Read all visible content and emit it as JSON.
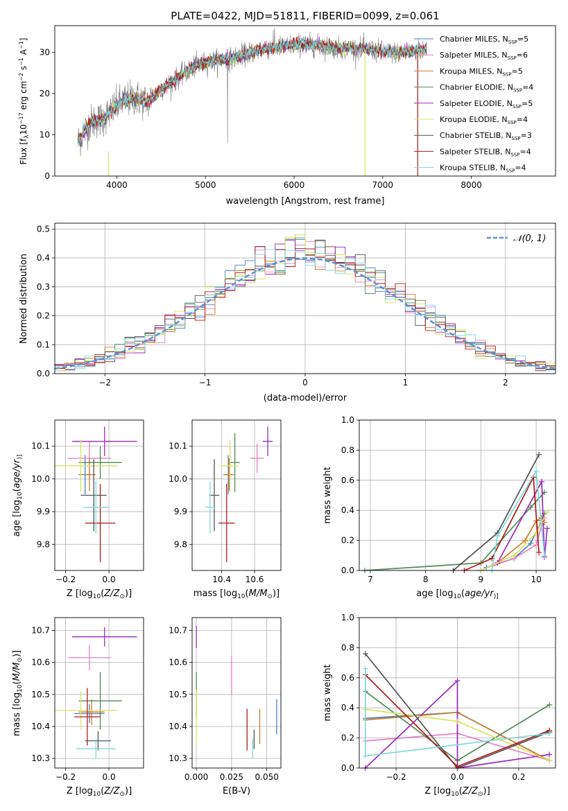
{
  "colors": {
    "Chabrier MILES": "#4a7fc1",
    "Salpeter MILES": "#e680c0",
    "Kroupa MILES": "#d07a2a",
    "Chabrier ELODIE": "#4f8a55",
    "Salpeter ELODIE": "#9a28b8",
    "Kroupa ELODIE": "#d8e45a",
    "Chabrier STELIB": "#505050",
    "Salpeter STELIB": "#b01818",
    "Kroupa STELIB": "#7fd8dc",
    "normal": "#5b8fd6",
    "grey_spec": "#777777"
  },
  "chart_data": [
    {
      "type": "line",
      "title": "PLATE=0422, MJD=51811, FIBERID=0099, z=0.061",
      "xlabel": "wavelength [Angstrom, rest frame]",
      "ylabel_parts": [
        "Flux [f",
        "λ",
        "10",
        "−17",
        " erg cm",
        "−2",
        " s",
        "−1",
        " A",
        "−1",
        "]"
      ],
      "xlim": [
        3300,
        8950
      ],
      "ylim": [
        0,
        36.5
      ],
      "xticks": [
        4000,
        5000,
        6000,
        7000,
        8000
      ],
      "xtick_labels": [
        "4000",
        "5000",
        "6000",
        "7000",
        "8000"
      ],
      "yticks": [
        0,
        10,
        20,
        30
      ],
      "ytick_labels": [
        "0",
        "10",
        "20",
        "30"
      ],
      "grid": false,
      "legend_position": "right",
      "legend": [
        {
          "model": "Chabrier MILES",
          "label": "Chabrier MILES, N",
          "sub": "SSP",
          "suffix": "=5"
        },
        {
          "model": "Salpeter MILES",
          "label": "Salpeter MILES, N",
          "sub": "SSP",
          "suffix": "=6"
        },
        {
          "model": "Kroupa MILES",
          "label": "Kroupa MILES, N",
          "sub": "SSP",
          "suffix": "=5"
        },
        {
          "model": "Chabrier ELODIE",
          "label": "Chabrier ELODIE, N",
          "sub": "SSP",
          "suffix": "=4"
        },
        {
          "model": "Salpeter ELODIE",
          "label": "Salpeter ELODIE, N",
          "sub": "SSP",
          "suffix": "=5"
        },
        {
          "model": "Kroupa ELODIE",
          "label": "Kroupa ELODIE, N",
          "sub": "SSP",
          "suffix": "=4"
        },
        {
          "model": "Chabrier STELIB",
          "label": "Chabrier STELIB, N",
          "sub": "SSP",
          "suffix": "=3"
        },
        {
          "model": "Salpeter STELIB",
          "label": "Salpeter STELIB, N",
          "sub": "SSP",
          "suffix": "=4"
        },
        {
          "model": "Kroupa STELIB",
          "label": "Kroupa STELIB, N",
          "sub": "SSP",
          "suffix": "=4"
        }
      ],
      "spectrum_shape": {
        "x": [
          3550,
          3700,
          3850,
          3950,
          4050,
          4200,
          4350,
          4500,
          4700,
          4900,
          5100,
          5300,
          5500,
          5700,
          5900,
          6100,
          6300,
          6500,
          6700,
          6900,
          7100,
          7300,
          7500
        ],
        "y": [
          8,
          13,
          14,
          16,
          18,
          19,
          18,
          21,
          24,
          27,
          28,
          28.5,
          30,
          31,
          31.5,
          32,
          31.5,
          31,
          31,
          30.5,
          30,
          30,
          31
        ]
      }
    },
    {
      "type": "step",
      "xlabel": "(data-model)/error",
      "ylabel": "Normed distribution",
      "xlim": [
        -2.5,
        2.5
      ],
      "ylim": [
        0,
        0.52
      ],
      "xticks": [
        -2,
        -1,
        0,
        1,
        2
      ],
      "xtick_labels": [
        "−2",
        "−1",
        "0",
        "1",
        "2"
      ],
      "yticks": [
        0,
        0.1,
        0.2,
        0.3,
        0.4,
        0.5
      ],
      "ytick_labels": [
        "0.0",
        "0.1",
        "0.2",
        "0.3",
        "0.4",
        "0.5"
      ],
      "grid": true,
      "legend_position": "top-right",
      "legend_label": "𝒩(0, 1)",
      "bin_width": 0.1
    },
    {
      "type": "errorbar",
      "xlabel": "Z [log10(Z/Z⊙)]",
      "xlabel_parts": [
        "Z [log",
        "10",
        "(",
        "Z/Z",
        "⊙",
        ")]"
      ],
      "ylabel_parts": [
        "age  [log",
        "10",
        "(",
        "age/yr",
        ")]"
      ],
      "xlim": [
        -0.25,
        0.16
      ],
      "ylim": [
        9.72,
        10.18
      ],
      "xticks": [
        -0.2,
        0.0
      ],
      "xtick_labels": [
        "−0.2",
        "0.0"
      ],
      "yticks": [
        9.8,
        9.9,
        10.0,
        10.1
      ],
      "ytick_labels": [
        "9.8",
        "9.9",
        "10.0",
        "10.1"
      ],
      "grid": true,
      "points": [
        {
          "model": "Chabrier MILES",
          "x": -0.11,
          "xerr": 0.03,
          "y": 10.013,
          "yerr": 0.06
        },
        {
          "model": "Salpeter MILES",
          "x": -0.09,
          "xerr": 0.1,
          "y": 10.063,
          "yerr": 0.05
        },
        {
          "model": "Kroupa MILES",
          "x": -0.09,
          "xerr": 0.03,
          "y": 10.013,
          "yerr": 0.05
        },
        {
          "model": "Chabrier ELODIE",
          "x": -0.04,
          "xerr": 0.1,
          "y": 10.05,
          "yerr": 0.05
        },
        {
          "model": "Salpeter ELODIE",
          "x": -0.02,
          "xerr": 0.15,
          "y": 10.115,
          "yerr": 0.045
        },
        {
          "model": "Kroupa ELODIE",
          "x": -0.13,
          "xerr": 0.17,
          "y": 10.04,
          "yerr": 0.08
        },
        {
          "model": "Chabrier STELIB",
          "x": -0.07,
          "xerr": 0.06,
          "y": 9.95,
          "yerr": 0.11
        },
        {
          "model": "Salpeter STELIB",
          "x": -0.04,
          "xerr": 0.07,
          "y": 9.865,
          "yerr": 0.12
        },
        {
          "model": "Kroupa STELIB",
          "x": -0.06,
          "xerr": 0.06,
          "y": 9.913,
          "yerr": 0.08
        }
      ]
    },
    {
      "type": "errorbar",
      "xlabel": "mass [log10(M/M⊙)]",
      "xlabel_parts": [
        "mass [log",
        "10",
        "(",
        "M/M",
        "⊙",
        ")]"
      ],
      "xlim": [
        10.22,
        10.76
      ],
      "ylim": [
        9.72,
        10.18
      ],
      "xticks": [
        10.4,
        10.6
      ],
      "xtick_labels": [
        "10.4",
        "10.6"
      ],
      "yticks": [
        9.8,
        9.9,
        10.0,
        10.1
      ],
      "ytick_labels": [
        "9.8",
        "9.9",
        "10.0",
        "10.1"
      ],
      "grid": true,
      "points": [
        {
          "model": "Chabrier MILES",
          "x": 10.44,
          "xerr": 0.03,
          "y": 10.013,
          "yerr": 0.06
        },
        {
          "model": "Salpeter MILES",
          "x": 10.615,
          "xerr": 0.04,
          "y": 10.063,
          "yerr": 0.045
        },
        {
          "model": "Kroupa MILES",
          "x": 10.445,
          "xerr": 0.03,
          "y": 10.013,
          "yerr": 0.05
        },
        {
          "model": "Chabrier ELODIE",
          "x": 10.48,
          "xerr": 0.03,
          "y": 10.05,
          "yerr": 0.09
        },
        {
          "model": "Salpeter ELODIE",
          "x": 10.68,
          "xerr": 0.03,
          "y": 10.115,
          "yerr": 0.045
        },
        {
          "model": "Kroupa ELODIE",
          "x": 10.45,
          "xerr": 0.05,
          "y": 10.04,
          "yerr": 0.08
        },
        {
          "model": "Chabrier STELIB",
          "x": 10.355,
          "xerr": 0.03,
          "y": 9.95,
          "yerr": 0.11
        },
        {
          "model": "Salpeter STELIB",
          "x": 10.43,
          "xerr": 0.05,
          "y": 9.865,
          "yerr": 0.12
        },
        {
          "model": "Kroupa STELIB",
          "x": 10.33,
          "xerr": 0.03,
          "y": 9.913,
          "yerr": 0.08
        }
      ]
    },
    {
      "type": "line",
      "xlabel_parts": [
        "age  [log",
        "10",
        "(",
        "age/yr",
        ")]"
      ],
      "ylabel": "mass weight",
      "xlim": [
        6.8,
        10.35
      ],
      "ylim": [
        0,
        1.0
      ],
      "xticks": [
        7,
        8,
        9,
        10
      ],
      "xtick_labels": [
        "7",
        "8",
        "9",
        "10"
      ],
      "yticks": [
        0,
        0.2,
        0.4,
        0.6,
        0.8,
        1.0
      ],
      "ytick_labels": [
        "0.0",
        "0.2",
        "0.4",
        "0.6",
        "0.8",
        "1.0"
      ],
      "grid": true,
      "series": [
        {
          "model": "Chabrier MILES",
          "x": [
            9.1,
            9.6,
            9.9,
            10.1,
            10.15
          ],
          "y": [
            0.02,
            0.08,
            0.18,
            0.33,
            0.38
          ]
        },
        {
          "model": "Salpeter MILES",
          "x": [
            9.2,
            9.6,
            10.0,
            10.1,
            10.15
          ],
          "y": [
            0.03,
            0.08,
            0.17,
            0.3,
            0.35
          ]
        },
        {
          "model": "Kroupa MILES",
          "x": [
            9.3,
            9.8,
            10.0,
            10.1,
            10.15
          ],
          "y": [
            0.05,
            0.2,
            0.33,
            0.35,
            0.32
          ]
        },
        {
          "model": "Chabrier ELODIE",
          "x": [
            6.9,
            9.0,
            9.9,
            10.15
          ],
          "y": [
            0.0,
            0.05,
            0.42,
            0.52
          ]
        },
        {
          "model": "Salpeter ELODIE",
          "x": [
            9.0,
            9.3,
            10.1,
            10.15,
            10.2
          ],
          "y": [
            0.0,
            0.05,
            0.59,
            0.09,
            0.28
          ]
        },
        {
          "model": "Kroupa ELODIE",
          "x": [
            9.0,
            9.6,
            10.0,
            10.1,
            10.2
          ],
          "y": [
            0.0,
            0.1,
            0.25,
            0.32,
            0.39
          ]
        },
        {
          "model": "Chabrier STELIB",
          "x": [
            8.5,
            9.3,
            10.05
          ],
          "y": [
            0.0,
            0.25,
            0.77
          ]
        },
        {
          "model": "Salpeter STELIB",
          "x": [
            8.7,
            9.2,
            9.95,
            10.05
          ],
          "y": [
            0.0,
            0.08,
            0.62,
            0.12
          ]
        },
        {
          "model": "Kroupa STELIB",
          "x": [
            9.2,
            9.3,
            10.0,
            10.15
          ],
          "y": [
            0.0,
            0.23,
            0.66,
            0.1
          ]
        }
      ]
    },
    {
      "type": "errorbar",
      "xlabel_parts": [
        "Z [log",
        "10",
        "(",
        "Z/Z",
        "⊙",
        ")]"
      ],
      "ylabel_parts": [
        "mass [log",
        "10",
        "(",
        "M/M",
        "⊙",
        ")]"
      ],
      "xlim": [
        -0.25,
        0.16
      ],
      "ylim": [
        10.27,
        10.74
      ],
      "xticks": [
        -0.2,
        0.0
      ],
      "xtick_labels": [
        "−0.2",
        "0.0"
      ],
      "yticks": [
        10.3,
        10.4,
        10.5,
        10.6,
        10.7
      ],
      "ytick_labels": [
        "10.3",
        "10.4",
        "10.5",
        "10.6",
        "10.7"
      ],
      "grid": true,
      "points": [
        {
          "model": "Chabrier MILES",
          "x": -0.09,
          "xerr": 0.07,
          "y": 10.44,
          "yerr": 0.03
        },
        {
          "model": "Salpeter MILES",
          "x": -0.09,
          "xerr": 0.1,
          "y": 10.615,
          "yerr": 0.04
        },
        {
          "model": "Kroupa MILES",
          "x": -0.08,
          "xerr": 0.06,
          "y": 10.445,
          "yerr": 0.04
        },
        {
          "model": "Chabrier ELODIE",
          "x": -0.04,
          "xerr": 0.1,
          "y": 10.48,
          "yerr": 0.09
        },
        {
          "model": "Salpeter ELODIE",
          "x": -0.02,
          "xerr": 0.15,
          "y": 10.68,
          "yerr": 0.03
        },
        {
          "model": "Kroupa ELODIE",
          "x": -0.13,
          "xerr": 0.17,
          "y": 10.45,
          "yerr": 0.06
        },
        {
          "model": "Chabrier STELIB",
          "x": -0.05,
          "xerr": 0.06,
          "y": 10.355,
          "yerr": 0.03
        },
        {
          "model": "Salpeter STELIB",
          "x": -0.1,
          "xerr": 0.06,
          "y": 10.43,
          "yerr": 0.09
        },
        {
          "model": "Kroupa STELIB",
          "x": -0.06,
          "xerr": 0.09,
          "y": 10.33,
          "yerr": 0.03
        }
      ]
    },
    {
      "type": "errorbar",
      "xlabel": "E(B-V)",
      "xlim": [
        -0.003,
        0.06
      ],
      "ylim": [
        10.27,
        10.74
      ],
      "xticks": [
        0.0,
        0.025,
        0.05
      ],
      "xtick_labels": [
        "0.000",
        "0.025",
        "0.050"
      ],
      "yticks": [
        10.3,
        10.4,
        10.5,
        10.6,
        10.7
      ],
      "ytick_labels": [
        "10.3",
        "10.4",
        "10.5",
        "10.6",
        "10.7"
      ],
      "grid": true,
      "points": [
        {
          "model": "Chabrier MILES",
          "x": 0.057,
          "y": 10.43,
          "yerr": 0.055
        },
        {
          "model": "Salpeter MILES",
          "x": 0.025,
          "y": 10.56,
          "yerr": 0.06
        },
        {
          "model": "Kroupa MILES",
          "x": 0.045,
          "y": 10.4,
          "yerr": 0.055
        },
        {
          "model": "Chabrier ELODIE",
          "x": 0.0,
          "y": 10.5,
          "yerr": 0.07
        },
        {
          "model": "Salpeter ELODIE",
          "x": 0.0,
          "y": 10.68,
          "yerr": 0.035
        },
        {
          "model": "Kroupa ELODIE",
          "x": 0.0,
          "y": 10.43,
          "yerr": 0.085
        },
        {
          "model": "Chabrier STELIB",
          "x": 0.041,
          "y": 10.36,
          "yerr": 0.03
        },
        {
          "model": "Salpeter STELIB",
          "x": 0.036,
          "y": 10.39,
          "yerr": 0.065
        },
        {
          "model": "Kroupa STELIB",
          "x": 0.04,
          "y": 10.33,
          "yerr": 0.03
        }
      ]
    },
    {
      "type": "line",
      "xlabel_parts": [
        "Z [log",
        "10",
        "(",
        "Z/Z",
        "⊙",
        ")]"
      ],
      "ylabel": "mass weight",
      "xlim": [
        -0.32,
        0.32
      ],
      "ylim": [
        0,
        1.0
      ],
      "xticks": [
        -0.2,
        0.0,
        0.2
      ],
      "xtick_labels": [
        "−0.2",
        "0.0",
        "0.2"
      ],
      "yticks": [
        0,
        0.2,
        0.4,
        0.6,
        0.8,
        1.0
      ],
      "ytick_labels": [
        "0.0",
        "0.2",
        "0.4",
        "0.6",
        "0.8",
        "1.0"
      ],
      "grid": true,
      "series": [
        {
          "model": "Chabrier MILES",
          "x": [
            -0.3,
            0.0,
            0.3
          ],
          "y": [
            0.33,
            0.37,
            0.05
          ]
        },
        {
          "model": "Salpeter MILES",
          "x": [
            -0.3,
            0.0,
            0.3
          ],
          "y": [
            0.18,
            0.23,
            0.05
          ]
        },
        {
          "model": "Kroupa MILES",
          "x": [
            -0.3,
            0.0,
            0.3
          ],
          "y": [
            0.32,
            0.37,
            0.05
          ]
        },
        {
          "model": "Chabrier ELODIE",
          "x": [
            -0.3,
            0.0,
            0.3
          ],
          "y": [
            0.51,
            0.05,
            0.42
          ]
        },
        {
          "model": "Salpeter ELODIE",
          "x": [
            -0.3,
            0.0,
            0.0,
            0.3
          ],
          "y": [
            0.0,
            0.58,
            0.0,
            0.09
          ]
        },
        {
          "model": "Kroupa ELODIE",
          "x": [
            -0.3,
            0.0,
            0.3
          ],
          "y": [
            0.39,
            0.31,
            0.05
          ]
        },
        {
          "model": "Chabrier STELIB",
          "x": [
            -0.3,
            0.0,
            0.3
          ],
          "y": [
            0.76,
            0.0,
            0.24
          ]
        },
        {
          "model": "Salpeter STELIB",
          "x": [
            -0.3,
            0.0,
            0.3
          ],
          "y": [
            0.62,
            0.01,
            0.25
          ]
        },
        {
          "model": "Kroupa STELIB",
          "x": [
            -0.3,
            -0.3,
            0.3
          ],
          "y": [
            0.66,
            0.08,
            0.23
          ]
        }
      ]
    }
  ]
}
